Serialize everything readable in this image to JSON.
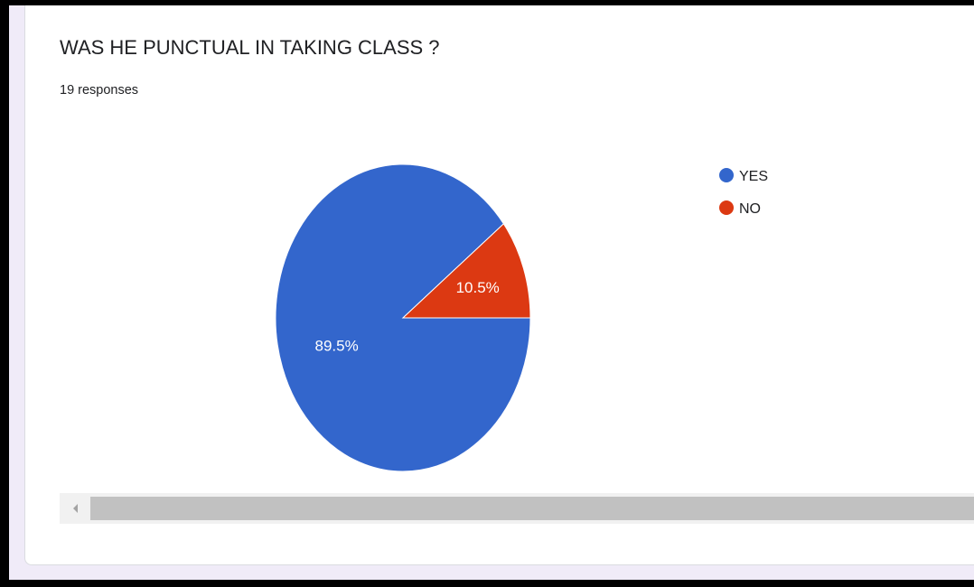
{
  "question": {
    "title": "WAS HE PUNCTUAL IN TAKING CLASS ?",
    "responses": "19 responses"
  },
  "chart_data": {
    "type": "pie",
    "slices": [
      {
        "label": "YES",
        "value": 89.5,
        "display": "89.5%",
        "color": "#3366cc"
      },
      {
        "label": "NO",
        "value": 10.5,
        "display": "10.5%",
        "color": "#dc3912"
      }
    ],
    "legend": [
      "YES",
      "NO"
    ],
    "legend_position": "right",
    "total_responses": 19
  },
  "icons": {
    "scroll_left": "chevron-left-icon"
  }
}
